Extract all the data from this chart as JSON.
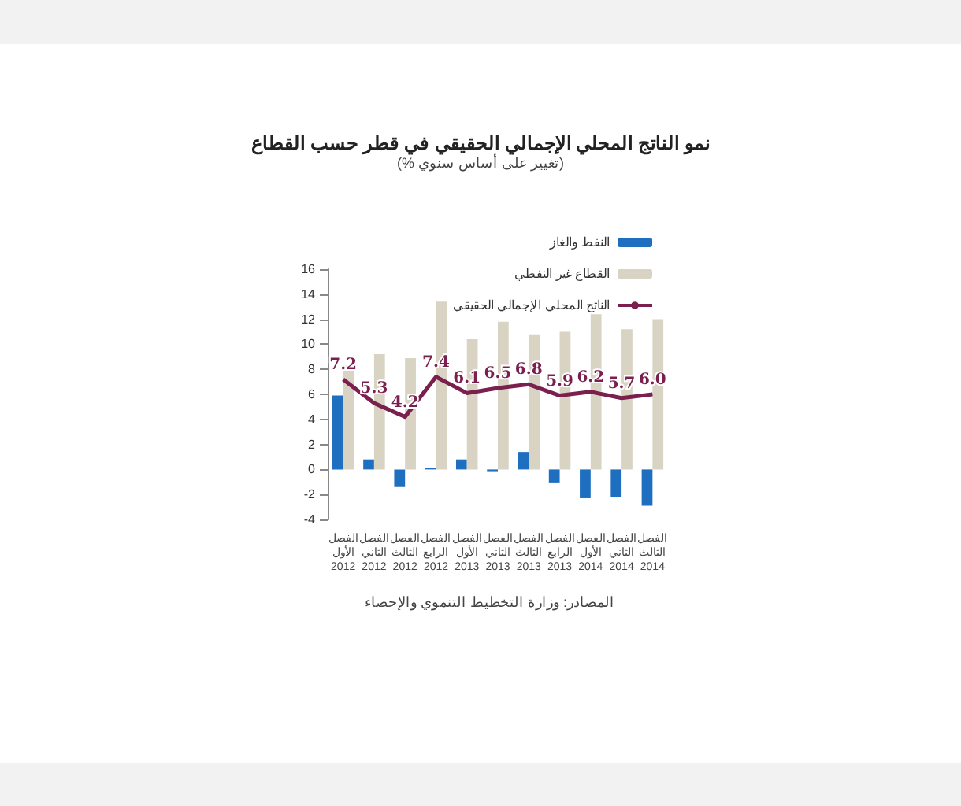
{
  "chart_data": {
    "type": "bar",
    "title": "نمو الناتج المحلي الإجمالي الحقيقي في قطر حسب القطاع",
    "subtitle": "(% تغيير على أساس سنوي)",
    "categories": [
      "الفصل الأول 2012",
      "الفصل الثاني 2012",
      "الفصل الثالث 2012",
      "الفصل الرابع 2012",
      "الفصل الأول 2013",
      "الفصل الثاني 2013",
      "الفصل الثالث 2013",
      "الفصل الرابع 2013",
      "الفصل الأول 2014",
      "الفصل الثاني 2014",
      "الفصل الثالث 2014"
    ],
    "series": [
      {
        "name": "النفط والغاز",
        "color": "#1f6fc0",
        "values": [
          5.9,
          0.8,
          -1.4,
          0.1,
          0.8,
          -0.2,
          1.4,
          -1.1,
          -2.3,
          -2.2,
          -2.9
        ]
      },
      {
        "name": "القطاع غير النفطي",
        "color": "#d8d3c3",
        "values": [
          8.3,
          9.2,
          8.9,
          13.4,
          10.4,
          11.8,
          10.8,
          11.0,
          12.4,
          11.2,
          12.0
        ]
      },
      {
        "name": "الناتج المحلي الإجمالي الحقيقي",
        "type": "line",
        "color": "#7a1f4e",
        "values": [
          7.2,
          5.3,
          4.2,
          7.4,
          6.1,
          6.5,
          6.8,
          5.9,
          6.2,
          5.7,
          6.0
        ],
        "value_labels": [
          "7.2",
          "5.3",
          "4.2",
          "7.4",
          "6.1",
          "6.5",
          "6.8",
          "5.9",
          "6.2",
          "5.7",
          "6.0"
        ]
      }
    ],
    "ylim": [
      -4,
      16
    ],
    "yticks": [
      -4,
      -2,
      0,
      2,
      4,
      6,
      8,
      10,
      12,
      14,
      16
    ],
    "grid": false,
    "legend": "top right",
    "marker": "none",
    "annotations": [
      "المصادر: وزارة التخطيط التنموي والإحصاء"
    ]
  }
}
